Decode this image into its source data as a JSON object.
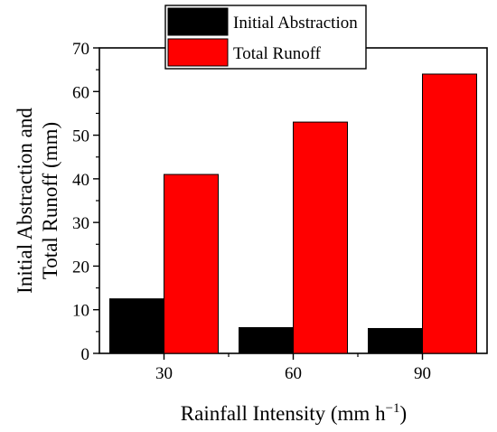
{
  "chart_data": {
    "type": "bar",
    "title": "",
    "categories": [
      "30",
      "60",
      "90"
    ],
    "series": [
      {
        "name": "Initial Abstraction",
        "color": "#000000",
        "values": [
          12.5,
          5.9,
          5.7
        ]
      },
      {
        "name": "Total Runoff",
        "color": "#ff0000",
        "values": [
          41,
          53,
          64
        ]
      }
    ],
    "xlabel": "Rainfall Intensity (mm h",
    "xlabel_superscript": "−1",
    "xlabel_suffix": ")",
    "ylabel_line1": "Initial Abstraction and",
    "ylabel_line2": "Total Runoff (mm)",
    "ylim": [
      0,
      70
    ],
    "yticks": [
      "0",
      "10",
      "20",
      "30",
      "40",
      "50",
      "60",
      "70"
    ],
    "legend_position": "top-center",
    "grid": false
  }
}
